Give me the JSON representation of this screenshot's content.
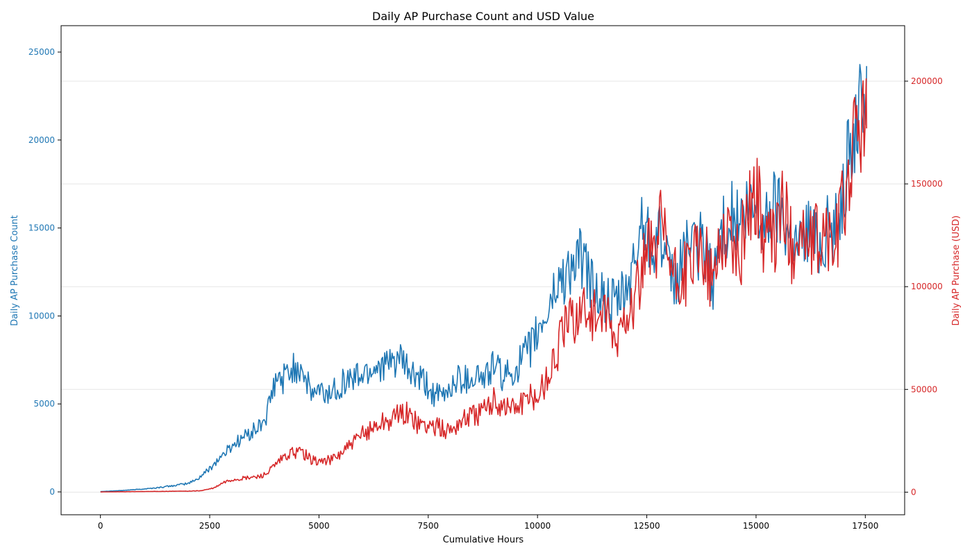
{
  "chart_data": {
    "type": "line",
    "title": "Daily AP Purchase Count and USD Value",
    "xlabel": "Cumulative Hours",
    "ylabel_left": "Daily AP Purchase Count",
    "ylabel_right": "Daily AP Purchase (USD)",
    "xlim": [
      -900,
      18400
    ],
    "ylim_left": [
      -1300,
      26500
    ],
    "ylim_right": [
      -11000,
      227000
    ],
    "x_ticks": [
      0,
      2500,
      5000,
      7500,
      10000,
      12500,
      15000,
      17500
    ],
    "y_left_ticks": [
      0,
      5000,
      10000,
      15000,
      20000,
      25000
    ],
    "y_right_ticks": [
      0,
      50000,
      100000,
      150000,
      200000
    ],
    "grid": "horizontal-right-axis",
    "colors": {
      "count": "#1f77b4",
      "usd": "#d62728",
      "grid": "#e5e5e5",
      "axis": "#000000"
    },
    "series": [
      {
        "axis": "left",
        "color": "#1f77b4",
        "x": [
          0,
          250,
          500,
          750,
          1000,
          1250,
          1500,
          1750,
          2000,
          2200,
          2400,
          2600,
          2800,
          3000,
          3200,
          3400,
          3600,
          3800,
          4000,
          4200,
          4400,
          4600,
          4800,
          5000,
          5200,
          5400,
          5600,
          5800,
          6000,
          6200,
          6400,
          6600,
          6800,
          7000,
          7200,
          7400,
          7600,
          7800,
          8000,
          8200,
          8400,
          8600,
          8800,
          9000,
          9200,
          9400,
          9600,
          9800,
          10000,
          10200,
          10400,
          10600,
          10800,
          11000,
          11200,
          11400,
          11600,
          11800,
          12000,
          12200,
          12400,
          12600,
          12800,
          13000,
          13200,
          13400,
          13600,
          13800,
          14000,
          14200,
          14400,
          14600,
          14800,
          15000,
          15200,
          15400,
          15600,
          15800,
          16000,
          16200,
          16400,
          16600,
          16800,
          17000,
          17200,
          17400,
          17530
        ],
        "values": [
          20,
          50,
          80,
          120,
          170,
          220,
          300,
          380,
          480,
          700,
          1100,
          1600,
          2100,
          2600,
          3000,
          3300,
          3600,
          4300,
          6200,
          6500,
          7000,
          7200,
          5600,
          5700,
          5500,
          6000,
          6300,
          6500,
          6700,
          7000,
          7300,
          7100,
          7600,
          7000,
          6500,
          6200,
          5600,
          5300,
          5900,
          6500,
          6400,
          6700,
          6400,
          7300,
          6500,
          6700,
          7400,
          8000,
          9000,
          10000,
          11500,
          12300,
          12800,
          13300,
          12000,
          11200,
          10700,
          10600,
          11200,
          12600,
          15800,
          14200,
          14900,
          12300,
          11800,
          14500,
          13500,
          14300,
          11800,
          14800,
          15700,
          15200,
          15700,
          16100,
          15000,
          16400,
          15800,
          14600,
          14000,
          15300,
          14000,
          14900,
          14800,
          17500,
          19800,
          21800,
          24200
        ]
      },
      {
        "axis": "right",
        "color": "#d62728",
        "x": [
          0,
          500,
          1000,
          1500,
          2000,
          2300,
          2600,
          2800,
          3000,
          3200,
          3400,
          3600,
          3800,
          4000,
          4200,
          4400,
          4600,
          4800,
          5000,
          5200,
          5400,
          5600,
          5800,
          6000,
          6200,
          6400,
          6600,
          6800,
          7000,
          7200,
          7400,
          7600,
          7800,
          8000,
          8200,
          8400,
          8600,
          8800,
          9000,
          9200,
          9400,
          9600,
          9800,
          10000,
          10200,
          10400,
          10600,
          10800,
          11000,
          11200,
          11400,
          11600,
          11800,
          12000,
          12200,
          12400,
          12600,
          12800,
          13000,
          13200,
          13400,
          13600,
          13800,
          14000,
          14200,
          14400,
          14600,
          14800,
          15000,
          15200,
          15400,
          15600,
          15800,
          16000,
          16200,
          16400,
          16600,
          16800,
          17000,
          17200,
          17400,
          17530
        ],
        "values": [
          100,
          200,
          300,
          400,
          500,
          700,
          2000,
          4500,
          6000,
          6500,
          7000,
          7500,
          9000,
          13000,
          17000,
          19000,
          20000,
          16000,
          15000,
          15500,
          17000,
          21000,
          24000,
          28000,
          31000,
          34000,
          35000,
          37000,
          39000,
          34000,
          33000,
          32000,
          31000,
          30000,
          34000,
          37000,
          38000,
          40000,
          44000,
          43000,
          41000,
          43000,
          45000,
          47000,
          55000,
          65000,
          80000,
          85000,
          90000,
          88000,
          85000,
          83000,
          70000,
          88000,
          92000,
          108000,
          118000,
          128000,
          113000,
          100000,
          108000,
          113000,
          118000,
          100000,
          125000,
          128000,
          110000,
          140000,
          145000,
          123000,
          120000,
          140000,
          120000,
          128000,
          118000,
          122000,
          125000,
          118000,
          140000,
          165000,
          183000,
          177000
        ]
      }
    ]
  }
}
